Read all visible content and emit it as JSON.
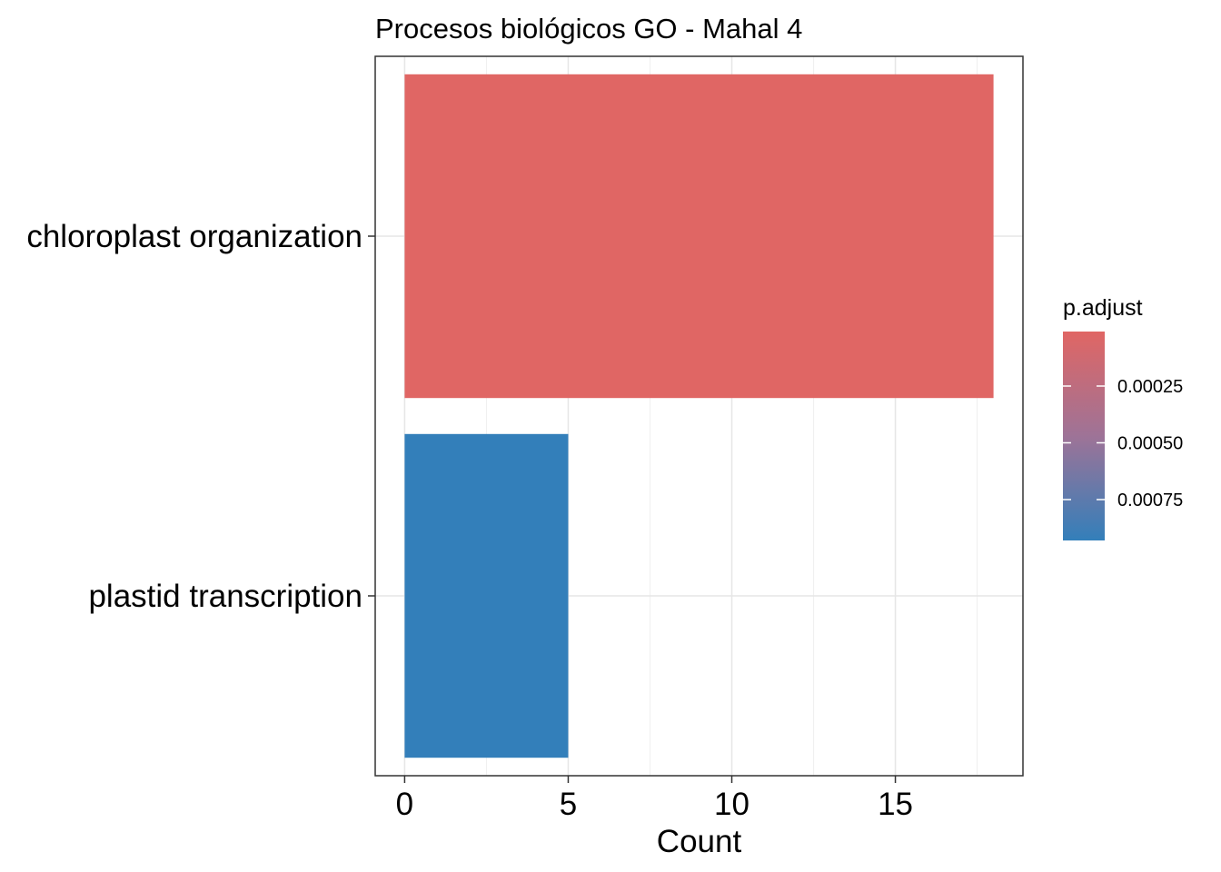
{
  "chart_data": {
    "type": "bar",
    "orientation": "horizontal",
    "title": "Procesos biológicos GO - Mahal 4",
    "xlabel": "Count",
    "ylabel": "",
    "xlim": [
      -0.9,
      18.9
    ],
    "x_ticks": [
      0,
      5,
      10,
      15
    ],
    "x_tick_labels": [
      "0",
      "5",
      "10",
      "15"
    ],
    "x_minor_ticks": [
      2.5,
      7.5,
      12.5,
      17.5
    ],
    "grid": true,
    "categories": [
      "chloroplast organization",
      "plastid transcription"
    ],
    "values": [
      18,
      5
    ],
    "p_adjust": [
      1e-05,
      0.00093
    ],
    "bar_colors": [
      "#E06664",
      "#337FBA"
    ],
    "legend": {
      "title": "p.adjust",
      "position": "right",
      "range": [
        1e-05,
        0.00093
      ],
      "ticks": [
        0.00025,
        0.0005,
        0.00075
      ],
      "tick_labels": [
        "0.00025",
        "0.00050",
        "0.00075"
      ],
      "low_color": "#E06664",
      "high_color": "#337FBA"
    }
  }
}
